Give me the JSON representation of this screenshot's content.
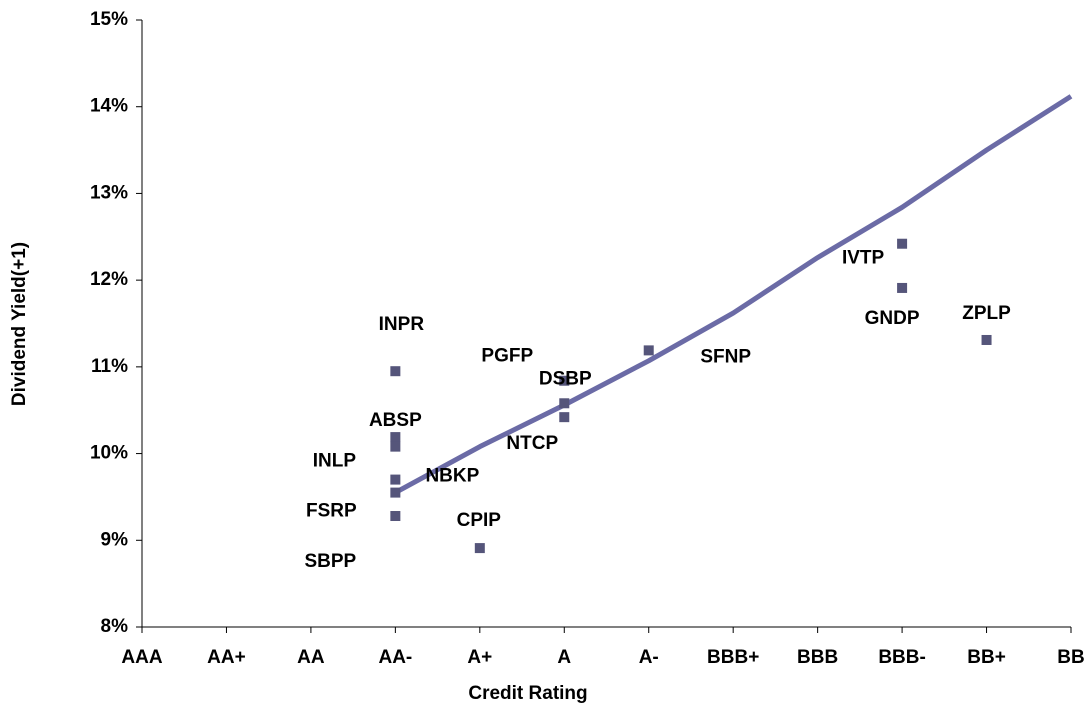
{
  "chart_data": {
    "type": "scatter",
    "x_label": "Credit Rating",
    "y_label": "Dividend Yield(+1)",
    "categories": [
      "AAA",
      "AA+",
      "AA",
      "AA-",
      "A+",
      "A",
      "A-",
      "BBB+",
      "BBB",
      "BBB-",
      "BB+",
      "BB"
    ],
    "xlim": [
      0,
      11
    ],
    "ylim": [
      8,
      15
    ],
    "yticks": [
      {
        "value": 8,
        "label": "8%"
      },
      {
        "value": 9,
        "label": "9%"
      },
      {
        "value": 10,
        "label": "10%"
      },
      {
        "value": 11,
        "label": "11%"
      },
      {
        "value": 12,
        "label": "12%"
      },
      {
        "value": 13,
        "label": "13%"
      },
      {
        "value": 14,
        "label": "14%"
      },
      {
        "value": 15,
        "label": "15%"
      }
    ],
    "series": [
      {
        "color": "#55557a",
        "x": [
          3,
          3,
          3,
          3,
          3,
          3,
          5,
          5,
          5,
          4,
          6,
          9,
          9,
          10
        ],
        "values": [
          10.95,
          10.19,
          10.08,
          9.7,
          9.55,
          9.28,
          10.84,
          10.58,
          10.42,
          8.91,
          11.19,
          12.42,
          11.91,
          11.31
        ],
        "labels": [
          "INPR",
          "ABSP",
          "INLP",
          "NBKP",
          "FSRP",
          "SBPP",
          "PGFP",
          "DSBP",
          "NTCP",
          "CPIP",
          "SFNP",
          "IVTP",
          "GNDP",
          "ZPLP"
        ]
      }
    ],
    "trend": {
      "color": "#6b6ba6",
      "x": [
        3,
        4,
        5,
        6,
        7,
        8,
        9,
        10,
        11
      ],
      "values": [
        9.55,
        10.08,
        10.56,
        11.07,
        11.62,
        12.26,
        12.84,
        13.5,
        14.12
      ]
    }
  }
}
